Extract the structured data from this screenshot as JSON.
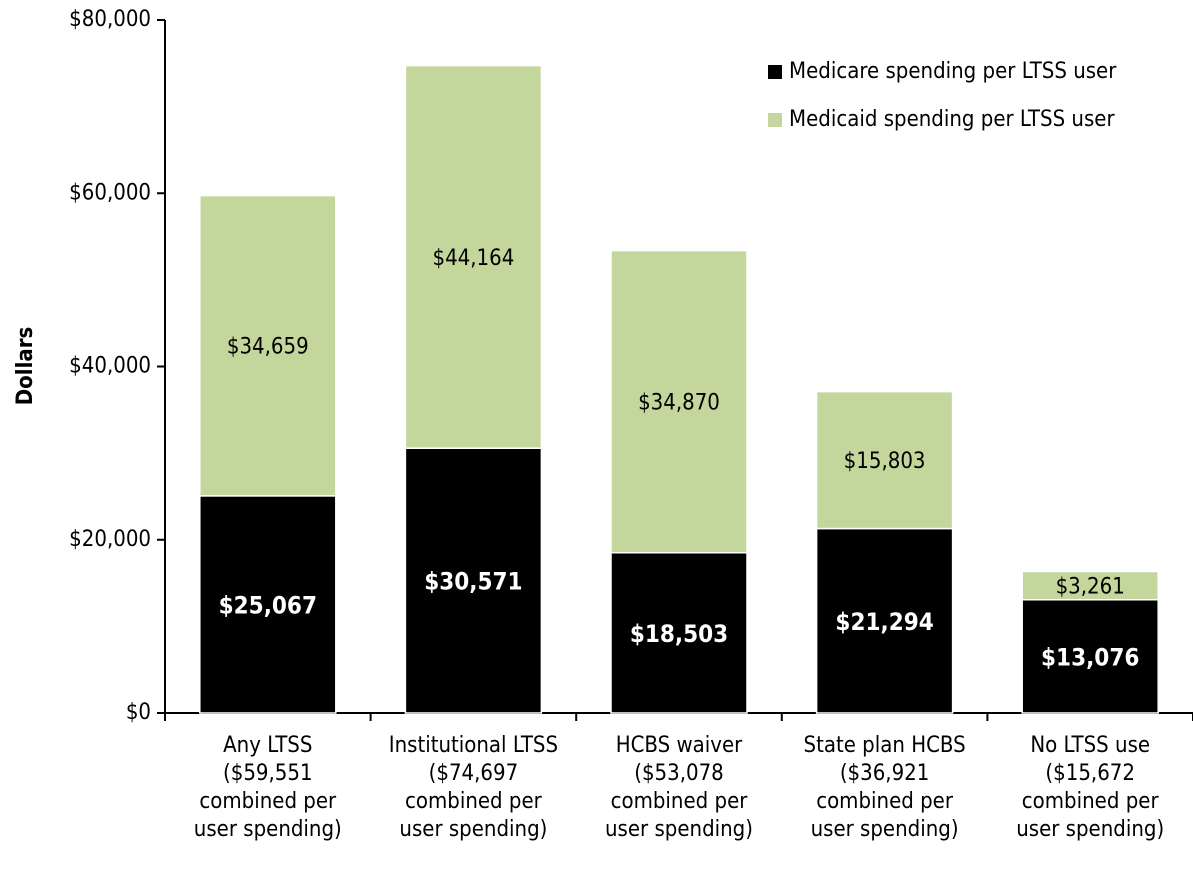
{
  "chart_data": {
    "type": "stacked_bar",
    "y_label": "Dollars",
    "categories": [
      "Any LTSS\n($59,551\ncombined per\nuser spending)",
      "Institutional LTSS\n($74,697\ncombined per\nuser spending)",
      "HCBS waiver\n($53,078\ncombined per\nuser spending)",
      "State plan HCBS\n($36,921\ncombined per\nuser spending)",
      "No LTSS use\n($15,672\ncombined per\nuser spending)"
    ],
    "series": [
      {
        "name": "Medicare spending per LTSS user",
        "color": "#000000",
        "label_color": "#ffffff",
        "label_bold": true,
        "values": [
          25067,
          30571,
          18503,
          21294,
          13076
        ],
        "value_labels": [
          "$25,067",
          "$30,571",
          "$18,503",
          "$21,294",
          "$13,076"
        ]
      },
      {
        "name": "Medicaid spending per LTSS user",
        "color": "#c3d69b",
        "label_color": "#000000",
        "label_bold": false,
        "values": [
          34659,
          44164,
          34870,
          15803,
          3261
        ],
        "value_labels": [
          "$34,659",
          "$44,164",
          "$34,870",
          "$15,803",
          "$3,261"
        ]
      }
    ],
    "ylim": [
      0,
      80000
    ],
    "yticks": [
      {
        "value": 0,
        "label": "$0"
      },
      {
        "value": 20000,
        "label": "$20,000"
      },
      {
        "value": 40000,
        "label": "$40,000"
      },
      {
        "value": 60000,
        "label": "$60,000"
      },
      {
        "value": 80000,
        "label": "$80,000"
      }
    ],
    "legend": "top-right"
  }
}
